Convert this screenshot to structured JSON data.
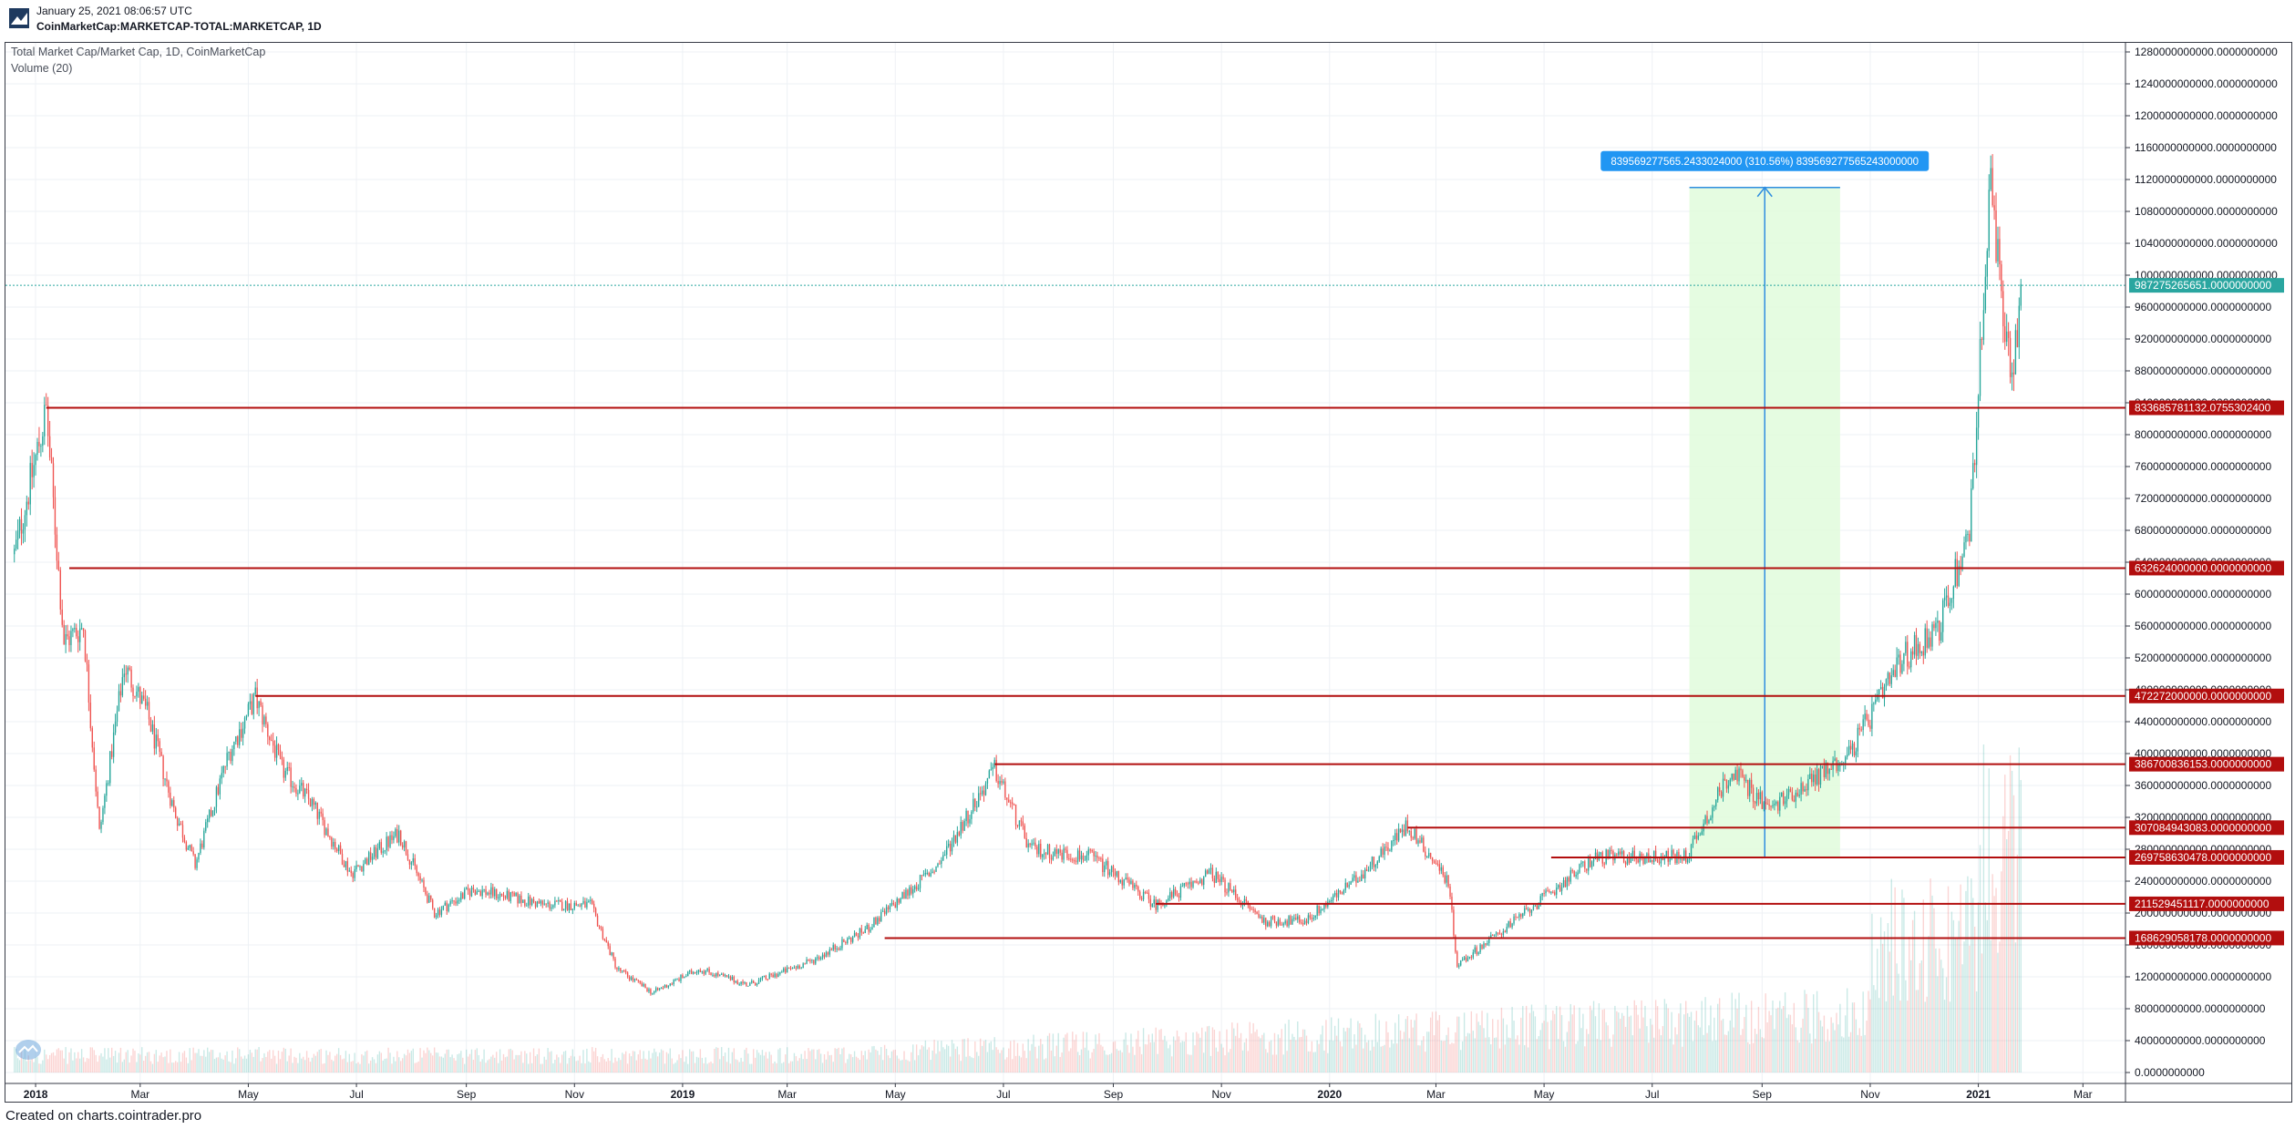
{
  "header": {
    "timestamp": "January 25, 2021 08:06:57 UTC",
    "symbol": "CoinMarketCap:MARKETCAP-TOTAL:MARKETCAP, 1D"
  },
  "legend": {
    "main": "Total Market Cap/Market Cap, 1D, CoinMarketCap",
    "volume": "Volume (20)"
  },
  "footer": "Created on charts.cointrader.pro",
  "colors": {
    "up": "#26a69a",
    "down": "#ef5350",
    "level_line": "#b20e0e",
    "measure_fill": "#e0fbdc",
    "measure_line": "#2f8ee0",
    "last_price": "#2aa6a0"
  },
  "chart_data": {
    "type": "candlestick",
    "x_ticks": [
      "2018",
      "Mar",
      "May",
      "Jul",
      "Sep",
      "Nov",
      "2019",
      "Mar",
      "May",
      "Jul",
      "Sep",
      "Nov",
      "2020",
      "Mar",
      "May",
      "Jul",
      "Sep",
      "Nov",
      "2021",
      "Mar"
    ],
    "y_range": [
      0,
      1280000000000
    ],
    "y_ticks": [
      0,
      40000000000,
      80000000000,
      120000000000,
      160000000000,
      200000000000,
      240000000000,
      280000000000,
      320000000000,
      360000000000,
      400000000000,
      440000000000,
      480000000000,
      520000000000,
      560000000000,
      600000000000,
      640000000000,
      680000000000,
      720000000000,
      760000000000,
      800000000000,
      840000000000,
      880000000000,
      920000000000,
      960000000000,
      1000000000000,
      1040000000000,
      1080000000000,
      1120000000000,
      1160000000000,
      1200000000000,
      1240000000000,
      1280000000000
    ],
    "y_tick_labels": [
      "0.0000000000",
      "40000000000.0000000000",
      "80000000000.0000000000",
      "120000000000.0000000000",
      "160000000000.0000000000",
      "200000000000.0000000000",
      "240000000000.0000000000",
      "280000000000.0000000000",
      "320000000000.0000000000",
      "360000000000.0000000000",
      "400000000000.0000000000",
      "440000000000.0000000000",
      "480000000000.0000000000",
      "520000000000.0000000000",
      "560000000000.0000000000",
      "600000000000.0000000000",
      "640000000000.0000000000",
      "680000000000.0000000000",
      "720000000000.0000000000",
      "760000000000.0000000000",
      "800000000000.0000000000",
      "840000000000.0000000000",
      "880000000000.0000000000",
      "920000000000.0000000000",
      "960000000000.0000000000",
      "1000000000000.0000000000",
      "1040000000000.0000000000",
      "1080000000000.0000000000",
      "1120000000000.0000000000",
      "1160000000000.0000000000",
      "1200000000000.0000000000",
      "1240000000000.0000000000",
      "1280000000000.0000000000"
    ],
    "price_path": [
      [
        "2017-12-20",
        650000000000
      ],
      [
        "2018-01-07",
        830000000000
      ],
      [
        "2018-01-17",
        540000000000
      ],
      [
        "2018-01-28",
        560000000000
      ],
      [
        "2018-02-06",
        300000000000
      ],
      [
        "2018-02-20",
        510000000000
      ],
      [
        "2018-03-05",
        450000000000
      ],
      [
        "2018-03-20",
        330000000000
      ],
      [
        "2018-04-01",
        260000000000
      ],
      [
        "2018-04-20",
        400000000000
      ],
      [
        "2018-05-05",
        470000000000
      ],
      [
        "2018-05-20",
        380000000000
      ],
      [
        "2018-06-05",
        340000000000
      ],
      [
        "2018-06-28",
        250000000000
      ],
      [
        "2018-07-25",
        300000000000
      ],
      [
        "2018-08-14",
        200000000000
      ],
      [
        "2018-09-05",
        230000000000
      ],
      [
        "2018-10-15",
        210000000000
      ],
      [
        "2018-11-10",
        210000000000
      ],
      [
        "2018-11-25",
        130000000000
      ],
      [
        "2018-12-15",
        100000000000
      ],
      [
        "2019-01-10",
        130000000000
      ],
      [
        "2019-02-07",
        110000000000
      ],
      [
        "2019-03-15",
        140000000000
      ],
      [
        "2019-04-15",
        180000000000
      ],
      [
        "2019-05-25",
        260000000000
      ],
      [
        "2019-06-26",
        380000000000
      ],
      [
        "2019-07-16",
        280000000000
      ],
      [
        "2019-08-20",
        270000000000
      ],
      [
        "2019-09-25",
        210000000000
      ],
      [
        "2019-10-26",
        250000000000
      ],
      [
        "2019-11-25",
        190000000000
      ],
      [
        "2019-12-18",
        190000000000
      ],
      [
        "2020-01-15",
        240000000000
      ],
      [
        "2020-02-14",
        310000000000
      ],
      [
        "2020-03-08",
        240000000000
      ],
      [
        "2020-03-13",
        135000000000
      ],
      [
        "2020-04-20",
        200000000000
      ],
      [
        "2020-05-30",
        270000000000
      ],
      [
        "2020-06-30",
        270000000000
      ],
      [
        "2020-07-20",
        270000000000
      ],
      [
        "2020-08-15",
        380000000000
      ],
      [
        "2020-09-05",
        330000000000
      ],
      [
        "2020-10-20",
        400000000000
      ],
      [
        "2020-11-20",
        520000000000
      ],
      [
        "2020-12-10",
        560000000000
      ],
      [
        "2020-12-27",
        680000000000
      ],
      [
        "2021-01-08",
        1110000000000
      ],
      [
        "2021-01-15",
        940000000000
      ],
      [
        "2021-01-21",
        880000000000
      ],
      [
        "2021-01-25",
        987000000000
      ]
    ],
    "levels": [
      {
        "start": "2018-01-07",
        "value": 833685781132.0756,
        "label": "833685781132.0755302400"
      },
      {
        "start": "2018-01-20",
        "value": 632624000000,
        "label": "632624000000.0000000000"
      },
      {
        "start": "2018-05-05",
        "value": 472272000000,
        "label": "472272000000.0000000000"
      },
      {
        "start": "2019-06-26",
        "value": 386700836153,
        "label": "386700836153.0000000000"
      },
      {
        "start": "2020-02-14",
        "value": 307084943083,
        "label": "307084943083.0000000000"
      },
      {
        "start": "2020-05-05",
        "value": 269758630478,
        "label": "269758630478.0000000000"
      },
      {
        "start": "2019-09-25",
        "value": 211529451117,
        "label": "211529451117.0000000000"
      },
      {
        "start": "2019-04-25",
        "value": 168629058178,
        "label": "168629058178.0000000000"
      }
    ],
    "last_price": {
      "value": 987275265651,
      "label": "987275265651.0000000000"
    },
    "measure": {
      "start": "2020-07-22",
      "end": "2020-10-15",
      "from_value": 269758630478,
      "to_value": 1110000000000,
      "label": "839569277565.2433024000 (310.56%) 839569277565243000000"
    },
    "volume_range": [
      0,
      1200000000000
    ]
  }
}
